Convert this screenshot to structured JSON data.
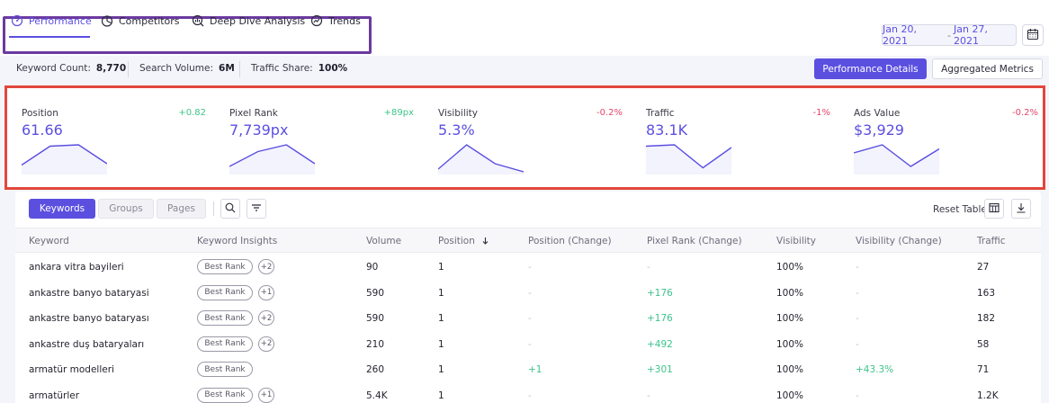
{
  "tabs": [
    {
      "label": "Performance",
      "icon": "gauge-icon",
      "active": true
    },
    {
      "label": "Competitors",
      "icon": "pie-chart-icon",
      "active": false
    },
    {
      "label": "Deep Dive Analysis",
      "icon": "bar-magnifier-icon",
      "active": false
    },
    {
      "label": "Trends",
      "icon": "trend-up-icon",
      "active": false
    }
  ],
  "date_range": {
    "start": "Jan 20, 2021",
    "separator": "-",
    "end": "Jan 27, 2021"
  },
  "summary": {
    "keyword_count_label": "Keyword Count:",
    "keyword_count_value": "8,770",
    "search_volume_label": "Search Volume:",
    "search_volume_value": "6M",
    "traffic_share_label": "Traffic Share:",
    "traffic_share_value": "100%"
  },
  "buttons": {
    "performance_details": "Performance Details",
    "aggregated_metrics": "Aggregated Metrics"
  },
  "metrics": [
    {
      "label": "Position",
      "value": "61.66",
      "change": "+0.82",
      "trend": "positive",
      "spark": [
        0.25,
        0.95,
        1.0,
        0.3
      ]
    },
    {
      "label": "Pixel Rank",
      "value": "7,739px",
      "change": "+89px",
      "trend": "positive",
      "spark": [
        0.2,
        0.75,
        1.0,
        0.3
      ]
    },
    {
      "label": "Visibility",
      "value": "5.3%",
      "change": "-0.2%",
      "trend": "negative",
      "spark": [
        0.1,
        1.0,
        0.3,
        0.0
      ]
    },
    {
      "label": "Traffic",
      "value": "83.1K",
      "change": "-1%",
      "trend": "negative",
      "spark": [
        0.95,
        1.0,
        0.15,
        0.9
      ]
    },
    {
      "label": "Ads Value",
      "value": "$3,929",
      "change": "-0.2%",
      "trend": "negative",
      "spark": [
        0.7,
        1.0,
        0.2,
        0.85
      ]
    }
  ],
  "table_controls": {
    "keywords": "Keywords",
    "groups": "Groups",
    "pages": "Pages",
    "reset_table": "Reset Table"
  },
  "columns": [
    "Keyword",
    "Keyword Insights",
    "Volume",
    "Position",
    "Position (Change)",
    "Pixel Rank (Change)",
    "Visibility",
    "Visibility (Change)",
    "Traffic"
  ],
  "rows": [
    {
      "keyword": "ankara vitra bayileri",
      "badge": "Best Rank",
      "extra": "+2",
      "volume": "90",
      "position": "1",
      "position_change": "-",
      "pixel_rank_change": "-",
      "visibility": "100%",
      "visibility_change": "-",
      "traffic": "27"
    },
    {
      "keyword": "ankastre banyo bataryasi",
      "badge": "Best Rank",
      "extra": "+1",
      "volume": "590",
      "position": "1",
      "position_change": "-",
      "pixel_rank_change": "+176",
      "visibility": "100%",
      "visibility_change": "-",
      "traffic": "163"
    },
    {
      "keyword": "ankastre banyo bataryası",
      "badge": "Best Rank",
      "extra": "+2",
      "volume": "590",
      "position": "1",
      "position_change": "-",
      "pixel_rank_change": "+176",
      "visibility": "100%",
      "visibility_change": "-",
      "traffic": "182"
    },
    {
      "keyword": "ankastre duş bataryaları",
      "badge": "Best Rank",
      "extra": "+2",
      "volume": "210",
      "position": "1",
      "position_change": "-",
      "pixel_rank_change": "+492",
      "visibility": "100%",
      "visibility_change": "-",
      "traffic": "58"
    },
    {
      "keyword": "armatür modelleri",
      "badge": "Best Rank",
      "extra": "",
      "volume": "260",
      "position": "1",
      "position_change": "+1",
      "pixel_rank_change": "+301",
      "visibility": "100%",
      "visibility_change": "+43.3%",
      "traffic": "71"
    },
    {
      "keyword": "armatürler",
      "badge": "Best Rank",
      "extra": "+1",
      "volume": "5.4K",
      "position": "1",
      "position_change": "-",
      "pixel_rank_change": "-",
      "visibility": "100%",
      "visibility_change": "-",
      "traffic": "1.2K"
    }
  ],
  "colors": {
    "accent": "#5b4fe0",
    "positive": "#3ec48b",
    "negative": "#e2476a",
    "highlight_red": "#e2473c",
    "highlight_purple": "#6b3aa0"
  }
}
